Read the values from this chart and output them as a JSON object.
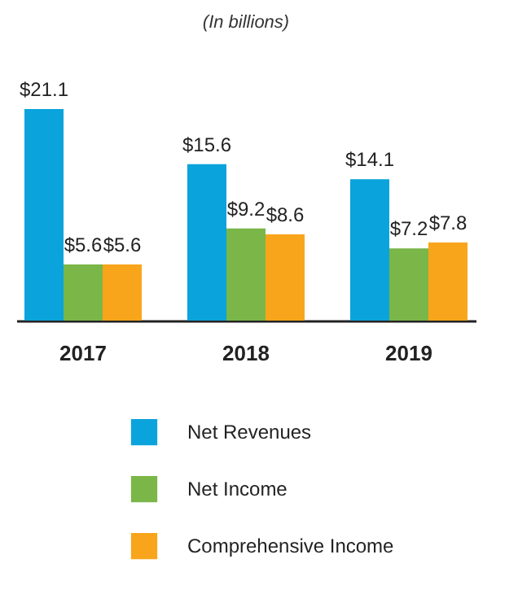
{
  "chart_data": {
    "type": "bar",
    "title": "(In billions)",
    "categories": [
      "2017",
      "2018",
      "2019"
    ],
    "series": [
      {
        "name": "Net Revenues",
        "color": "#0ba3dc",
        "values": [
          21.1,
          15.6,
          14.1
        ],
        "value_labels": [
          "$21.1",
          "$15.6",
          "$14.1"
        ]
      },
      {
        "name": "Net Income",
        "color": "#7ab648",
        "values": [
          5.6,
          9.2,
          7.2
        ],
        "value_labels": [
          "$5.6",
          "$9.2",
          "$7.2"
        ]
      },
      {
        "name": "Comprehensive Income",
        "color": "#f9a51b",
        "values": [
          5.6,
          8.6,
          7.8
        ],
        "value_labels": [
          "$5.6",
          "$8.6",
          "$7.8"
        ]
      }
    ],
    "legend": "bottom"
  }
}
